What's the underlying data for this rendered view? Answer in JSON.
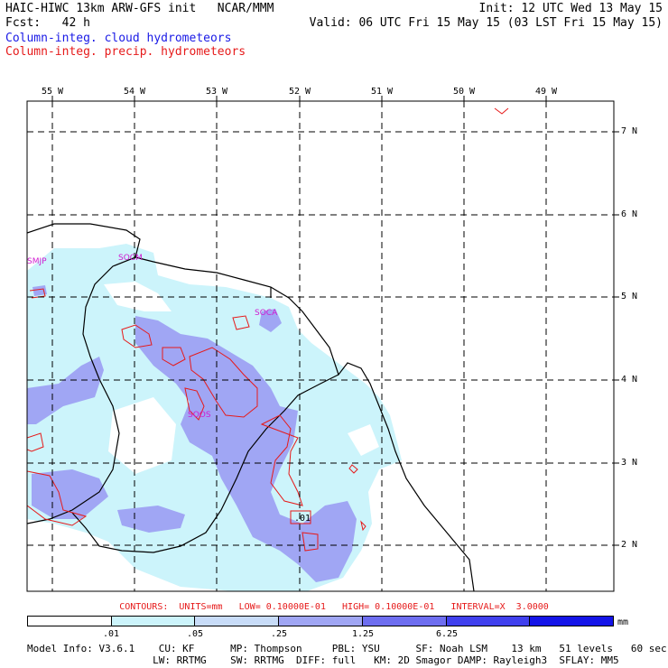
{
  "header": {
    "title": "HAIC-HIWC 13km ARW-GFS init   NCAR/MMM",
    "fcst": "Fcst:   42 h",
    "init": "Init: 12 UTC Wed 13 May 15",
    "valid": "Valid: 06 UTC Fri 15 May 15 (03 LST Fri 15 May 15)",
    "cloud_label": "Column-integ. cloud hydrometeors",
    "precip_label": "Column-integ. precip. hydrometeors"
  },
  "longitudes": [
    "55 W",
    "54 W",
    "53 W",
    "52 W",
    "51 W",
    "50 W",
    "49 W"
  ],
  "latitudes": [
    "7 N",
    "6 N",
    "5 N",
    "4 N",
    "3 N",
    "2 N"
  ],
  "stations": [
    "SMJP",
    "SOCM",
    "SOCA",
    "SOOS"
  ],
  "contour_value_label": ".01",
  "contours_info": "CONTOURS:  UNITS=mm   LOW= 0.10000E-01   HIGH= 0.10000E-01   INTERVAL=X  3.0000",
  "colorbar": {
    "ticks": [
      ".01",
      ".05",
      ".25",
      "1.25",
      "6.25"
    ],
    "units": "mm",
    "colors": [
      "#ffffff",
      "#ccf4fb",
      "#c8dcf8",
      "#a0a6f4",
      "#6e6ef0",
      "#4040ee",
      "#1414e8"
    ]
  },
  "model_info": {
    "line1": "Model Info: V3.6.1    CU: KF      MP: Thompson     PBL: YSU      SF: Noah LSM    13 km   51 levels   60 sec",
    "line2": "                     LW: RRTMG    SW: RRTMG  DIFF: full   KM: 2D Smagor DAMP: Rayleigh3  SFLAY: MM5"
  },
  "colors": {
    "cloud_fill_light": "#ccf4fb",
    "cloud_fill_mid": "#a0a6f4",
    "precip_contour": "#e61a1a",
    "station_label": "#d01ad0",
    "cloud_title": "#1a1ae6"
  }
}
